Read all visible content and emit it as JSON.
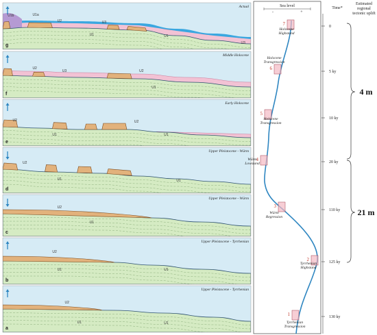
{
  "panels": [
    {
      "letter": "g",
      "title": "Actual",
      "units": [
        "U1b",
        "U1a",
        "U2",
        "U3",
        "U1",
        "U1",
        "U3"
      ],
      "arrow": "up"
    },
    {
      "letter": "f",
      "title": "Middle Holocene",
      "units": [
        "U2",
        "U3",
        "U2",
        "U1"
      ],
      "arrow": "up"
    },
    {
      "letter": "e",
      "title": "Early Holocene",
      "units": [
        "U2",
        "U2",
        "U1",
        "U1"
      ],
      "arrow": "up"
    },
    {
      "letter": "d",
      "title": "Upper Pleistocene - Würm",
      "units": [
        "U2",
        "U1",
        "U1"
      ],
      "arrow": "down"
    },
    {
      "letter": "c",
      "title": "Upper Pleistocene - Würm",
      "units": [
        "U2",
        "U1"
      ],
      "arrow": "down"
    },
    {
      "letter": "b",
      "title": "Upper Pleistocene - Tyrrhenian",
      "units": [
        "U2",
        "U1",
        "U1"
      ],
      "arrow": "up"
    },
    {
      "letter": "a",
      "title": "Upper Pleistocene - Tyrrhenian",
      "units": [
        "U2",
        "U1",
        "U1"
      ],
      "arrow": "up"
    }
  ],
  "sea_level": {
    "header": "Sea level",
    "minus": "-",
    "plus": "+",
    "curve_color": "#2e86c1",
    "stages": [
      {
        "num": "7",
        "label": [
          "Holocene",
          "Highstand"
        ]
      },
      {
        "num": "6",
        "label": [
          "Holocene",
          "Transgression"
        ]
      },
      {
        "num": "5",
        "label": [
          "Holocene",
          "Transgression"
        ]
      },
      {
        "num": "4",
        "label": [
          "Würm",
          "Lowstand"
        ]
      },
      {
        "num": "3",
        "label": [
          "Würm",
          "Regression"
        ]
      },
      {
        "num": "2",
        "label": [
          "Tyrrhenian",
          "Highstand"
        ]
      },
      {
        "num": "1",
        "label": [
          "Tyrrhenian",
          "Transgression"
        ]
      }
    ]
  },
  "time": {
    "header": "Time*",
    "ticks": [
      "0",
      "5 ky",
      "10 ky",
      "20 ky",
      "110 ky",
      "125 ky",
      "130 ky"
    ]
  },
  "uplift": {
    "header": [
      "Estimated",
      "regional",
      "tectonic uplift"
    ],
    "values": [
      "4 m",
      "21 m"
    ]
  },
  "colors": {
    "sea": "#d6ebf5",
    "substrate": "#d5ebc3",
    "deposit": "#e2b27c",
    "holocene": "#f2c2d4",
    "actual_sea": "#3aa7e0",
    "purple": "#b59ad3",
    "arrow": "#2e86c1"
  }
}
